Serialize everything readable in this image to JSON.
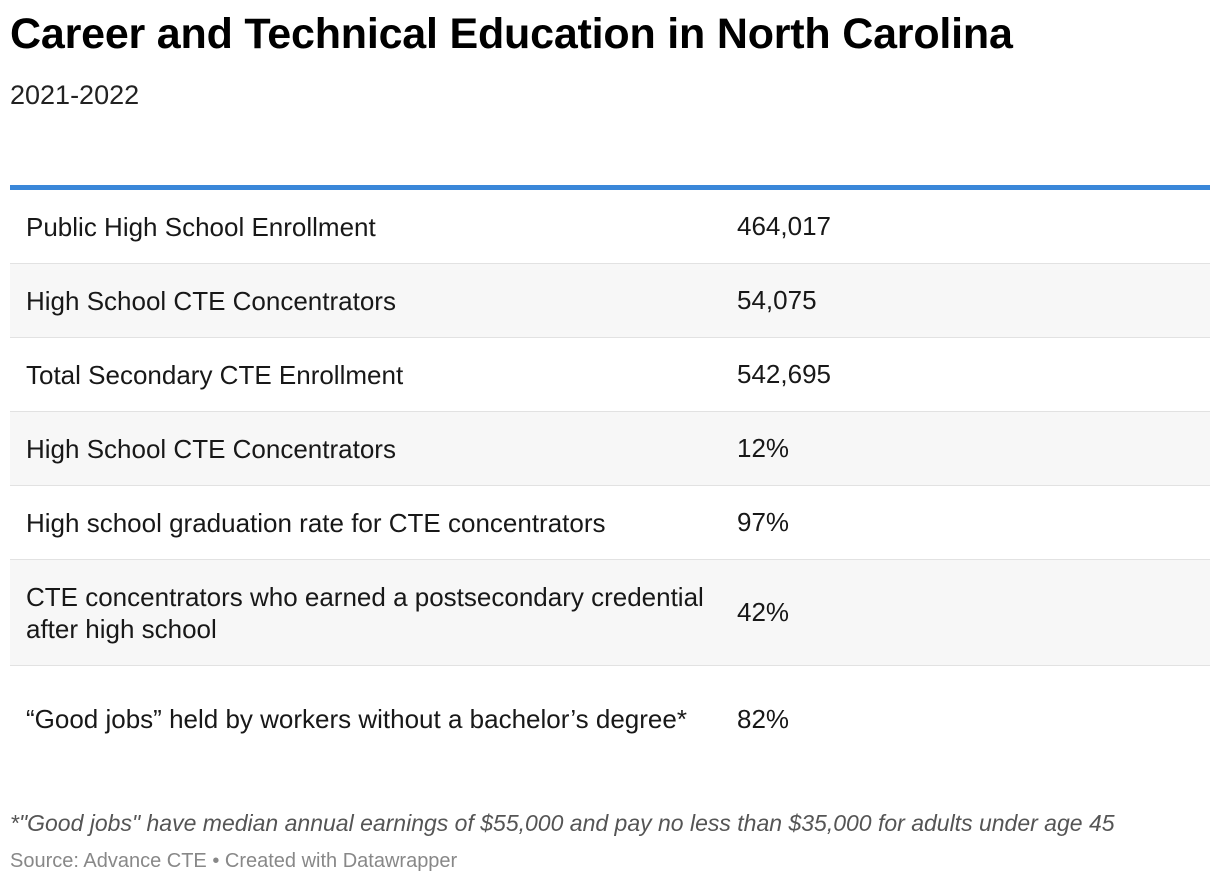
{
  "chart_data": {
    "type": "table",
    "title": "Career and Technical Education in North Carolina",
    "subtitle": "2021-2022",
    "rows": [
      {
        "label": "Public High School Enrollment",
        "value": "464,017"
      },
      {
        "label": "High School CTE Concentrators",
        "value": "54,075"
      },
      {
        "label": "Total Secondary CTE Enrollment",
        "value": "542,695"
      },
      {
        "label": "High School CTE Concentrators",
        "value": "12%"
      },
      {
        "label": "High school graduation rate for CTE concentrators",
        "value": "97%"
      },
      {
        "label": "CTE concentrators who earned a postsecondary credential after high school",
        "value": "42%"
      },
      {
        "label": "“Good jobs” held by workers without a bachelor’s degree*",
        "value": "82%"
      }
    ],
    "notes": "*\"Good jobs\" have median annual earnings of $55,000 and pay no less than $35,000 for adults under age 45",
    "source": "Source: Advance CTE • Created with Datawrapper",
    "accent_color": "#3a87d9"
  }
}
